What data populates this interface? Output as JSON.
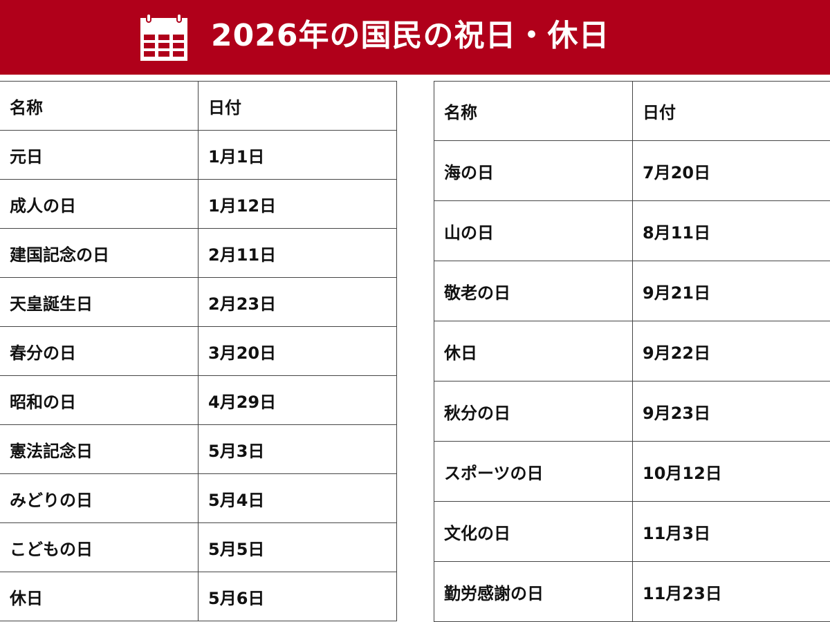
{
  "header": {
    "title": "2026年の国民の祝日・休日",
    "icon": "calendar-icon",
    "background": "#b0001a"
  },
  "left_table": {
    "columns": [
      "名称",
      "日付"
    ],
    "rows": [
      [
        "元日",
        "1月1日"
      ],
      [
        "成人の日",
        "1月12日"
      ],
      [
        "建国記念の日",
        "2月11日"
      ],
      [
        "天皇誕生日",
        "2月23日"
      ],
      [
        "春分の日",
        "3月20日"
      ],
      [
        "昭和の日",
        "4月29日"
      ],
      [
        "憲法記念日",
        "5月3日"
      ],
      [
        "みどりの日",
        "5月4日"
      ],
      [
        "こどもの日",
        "5月5日"
      ],
      [
        "休日",
        "5月6日"
      ]
    ]
  },
  "right_table": {
    "columns": [
      "名称",
      "日付"
    ],
    "rows": [
      [
        "海の日",
        "7月20日"
      ],
      [
        "山の日",
        "8月11日"
      ],
      [
        "敬老の日",
        "9月21日"
      ],
      [
        "休日",
        "9月22日"
      ],
      [
        "秋分の日",
        "9月23日"
      ],
      [
        "スポーツの日",
        "10月12日"
      ],
      [
        "文化の日",
        "11月3日"
      ],
      [
        "勤労感謝の日",
        "11月23日"
      ]
    ]
  }
}
